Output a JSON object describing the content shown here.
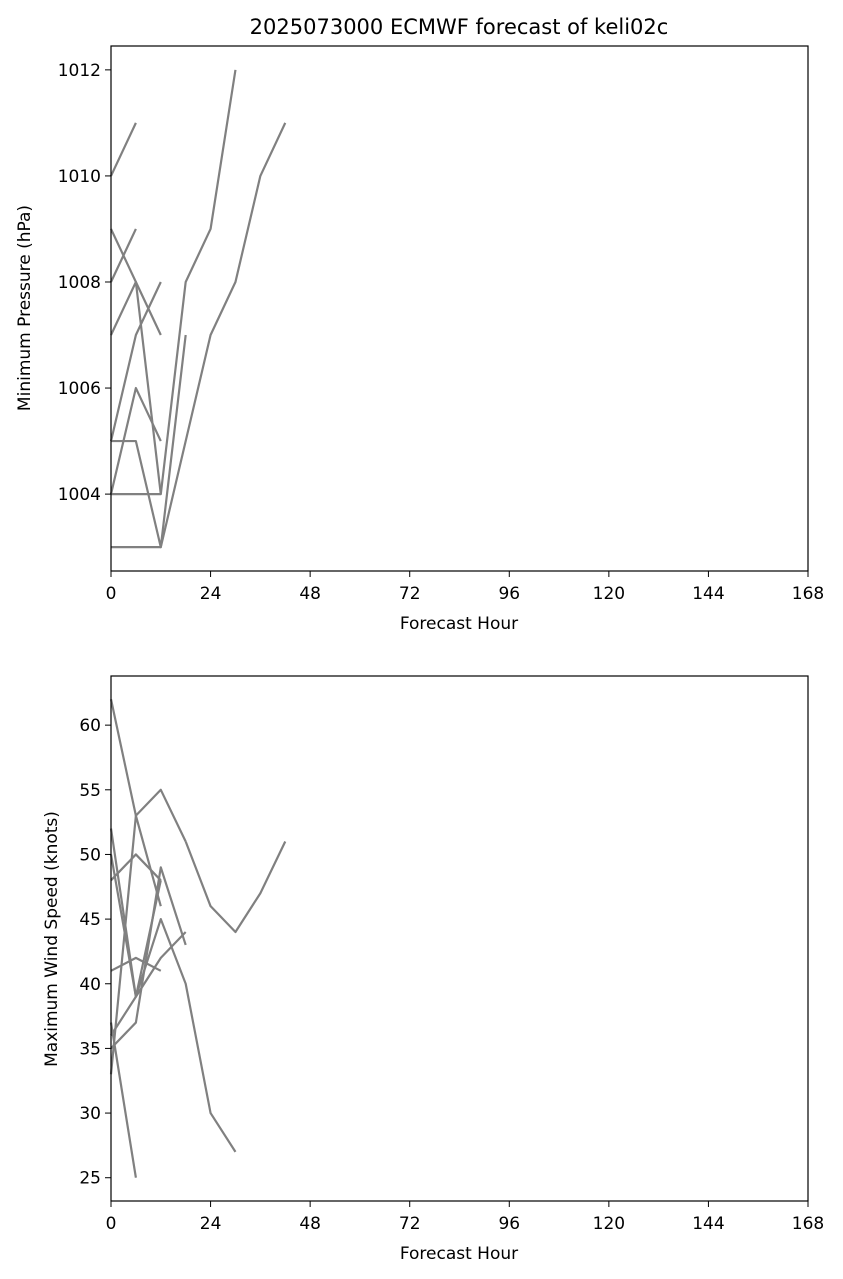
{
  "chart_data": [
    {
      "type": "line",
      "title": "2025073000 ECMWF forecast of keli02c",
      "xlabel": "Forecast Hour",
      "ylabel": "Minimum Pressure (hPa)",
      "xlim": [
        0,
        168
      ],
      "ylim": [
        1002.55,
        1012.45
      ],
      "xticks": [
        0,
        24,
        48,
        72,
        96,
        120,
        144,
        168
      ],
      "yticks": [
        1004,
        1006,
        1008,
        1010,
        1012
      ],
      "grid": false,
      "line_color": "#808080",
      "series": [
        {
          "x": [
            0,
            6
          ],
          "y": [
            1010,
            1011
          ]
        },
        {
          "x": [
            0,
            6
          ],
          "y": [
            1008,
            1009
          ]
        },
        {
          "x": [
            0,
            6,
            12
          ],
          "y": [
            1009,
            1008,
            1007
          ]
        },
        {
          "x": [
            0,
            6,
            12
          ],
          "y": [
            1007,
            1008,
            1004
          ]
        },
        {
          "x": [
            0,
            6,
            12
          ],
          "y": [
            1005,
            1007,
            1008
          ]
        },
        {
          "x": [
            0,
            6,
            12
          ],
          "y": [
            1004,
            1006,
            1005
          ]
        },
        {
          "x": [
            0,
            6,
            12,
            18
          ],
          "y": [
            1005,
            1005,
            1003,
            1007
          ]
        },
        {
          "x": [
            0,
            12,
            18,
            24,
            30
          ],
          "y": [
            1004,
            1004,
            1008,
            1009,
            1012
          ]
        },
        {
          "x": [
            0,
            12,
            24,
            30,
            36,
            42
          ],
          "y": [
            1003,
            1003,
            1007,
            1008,
            1010,
            1011
          ]
        }
      ]
    },
    {
      "type": "line",
      "title": "",
      "xlabel": "Forecast Hour",
      "ylabel": "Maximum Wind Speed (knots)",
      "xlim": [
        0,
        168
      ],
      "ylim": [
        23.2,
        63.8
      ],
      "xticks": [
        0,
        24,
        48,
        72,
        96,
        120,
        144,
        168
      ],
      "yticks": [
        25,
        30,
        35,
        40,
        45,
        50,
        55,
        60
      ],
      "grid": false,
      "line_color": "#808080",
      "series": [
        {
          "x": [
            0,
            6
          ],
          "y": [
            37,
            25
          ]
        },
        {
          "x": [
            0,
            6,
            12
          ],
          "y": [
            62,
            53,
            46
          ]
        },
        {
          "x": [
            0,
            6,
            12
          ],
          "y": [
            52,
            39,
            48
          ]
        },
        {
          "x": [
            0,
            6,
            12
          ],
          "y": [
            48,
            50,
            48
          ]
        },
        {
          "x": [
            0,
            6,
            12
          ],
          "y": [
            41,
            42,
            41
          ]
        },
        {
          "x": [
            0,
            6,
            12,
            18
          ],
          "y": [
            33,
            53,
            55,
            51
          ]
        },
        {
          "x": [
            0,
            6,
            12,
            18
          ],
          "y": [
            35,
            37,
            49,
            43
          ]
        },
        {
          "x": [
            0,
            12,
            18
          ],
          "y": [
            36,
            42,
            44
          ]
        },
        {
          "x": [
            0,
            6,
            12,
            18,
            24,
            30
          ],
          "y": [
            50,
            39,
            45,
            40,
            30,
            27
          ]
        },
        {
          "x": [
            18,
            24,
            30,
            36,
            42
          ],
          "y": [
            51,
            46,
            44,
            47,
            51
          ]
        }
      ]
    }
  ]
}
